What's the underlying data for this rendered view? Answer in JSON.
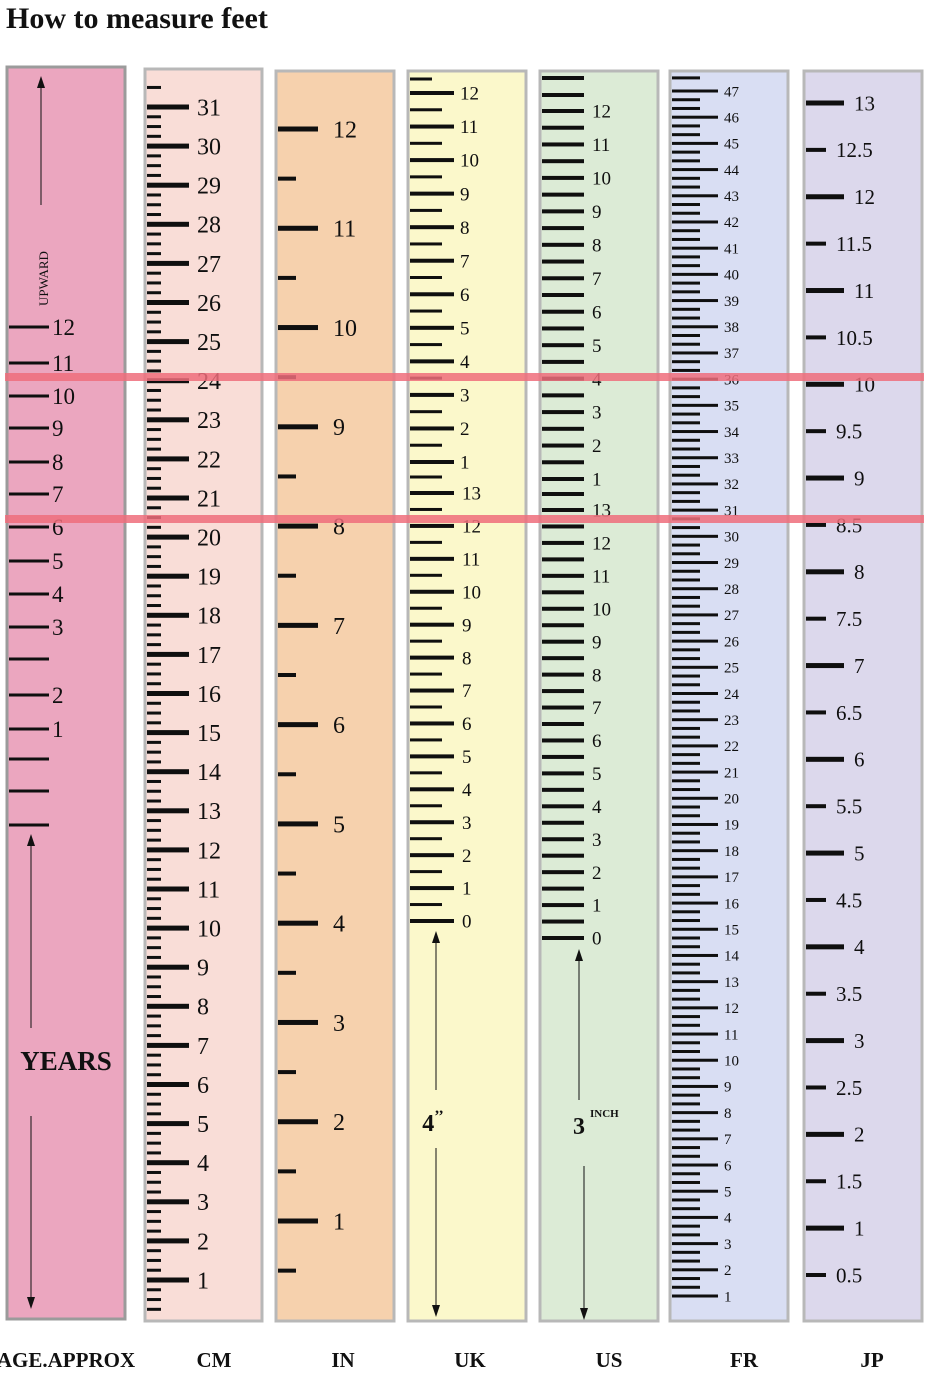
{
  "title": "How to measure feet",
  "colors": {
    "age": "#eba6bf",
    "cm": "#f9ddd7",
    "in": "#f6d1ad",
    "uk": "#fbf8cb",
    "us": "#dcebd6",
    "fr": "#d9def3",
    "jp": "#dcd8ec",
    "guide_line": "#ee6d7b",
    "tick": "#0f0f0f"
  },
  "columns": [
    {
      "key": "age",
      "footer": "AGE.APPROX"
    },
    {
      "key": "cm",
      "footer": "CM"
    },
    {
      "key": "in",
      "footer": "IN"
    },
    {
      "key": "uk",
      "footer": "UK"
    },
    {
      "key": "us",
      "footer": "US"
    },
    {
      "key": "fr",
      "footer": "FR"
    },
    {
      "key": "jp",
      "footer": "JP"
    }
  ],
  "annotations": {
    "upward": "UPWARD",
    "years": "YEARS",
    "uk_length": "4",
    "uk_length_unit": "’’",
    "us_length": "3",
    "us_length_unit": "INCH"
  },
  "chart_data": {
    "type": "table",
    "title": "How to measure feet",
    "scales": {
      "age": [
        "12",
        "11",
        "10",
        "9",
        "8",
        "7",
        "6",
        "5",
        "4",
        "3",
        "2",
        "1"
      ],
      "cm": [
        "31",
        "30",
        "29",
        "28",
        "27",
        "26",
        "25",
        "24",
        "23",
        "22",
        "21",
        "20",
        "19",
        "18",
        "17",
        "16",
        "15",
        "14",
        "13",
        "12",
        "11",
        "10",
        "9",
        "8",
        "7",
        "6",
        "5",
        "4",
        "3",
        "2",
        "1"
      ],
      "in": [
        "12",
        "11",
        "10",
        "9",
        "8",
        "7",
        "6",
        "5",
        "4",
        "3",
        "2",
        "1"
      ],
      "uk_adult": [
        "12",
        "11",
        "10",
        "9",
        "8",
        "7",
        "6",
        "5",
        "4",
        "3",
        "2",
        "1"
      ],
      "uk_child": [
        "13",
        "12",
        "11",
        "10",
        "9",
        "8",
        "7",
        "6",
        "5",
        "4",
        "3",
        "2",
        "1",
        "0"
      ],
      "us_adult": [
        "12",
        "11",
        "10",
        "9",
        "8",
        "7",
        "6",
        "5",
        "4",
        "3",
        "2",
        "1"
      ],
      "us_child": [
        "13",
        "12",
        "11",
        "10",
        "9",
        "8",
        "7",
        "6",
        "5",
        "4",
        "3",
        "2",
        "1",
        "0"
      ],
      "fr": [
        "47",
        "46",
        "45",
        "44",
        "43",
        "42",
        "41",
        "40",
        "39",
        "38",
        "37",
        "36",
        "35",
        "34",
        "33",
        "32",
        "31",
        "30",
        "29",
        "28",
        "27",
        "26",
        "25",
        "24",
        "23",
        "22",
        "21",
        "20",
        "19",
        "18",
        "17",
        "16",
        "15",
        "14",
        "13",
        "12",
        "11",
        "10",
        "9",
        "8",
        "7",
        "6",
        "5",
        "4",
        "3",
        "2",
        "1"
      ],
      "jp": [
        "13",
        "12.5",
        "12",
        "11.5",
        "11",
        "10.5",
        "10",
        "9.5",
        "9",
        "8.5",
        "8",
        "7.5",
        "7",
        "6.5",
        "6",
        "5.5",
        "5",
        "4.5",
        "4",
        "3.5",
        "3",
        "2.5",
        "2",
        "1.5",
        "1",
        "0.5"
      ]
    },
    "guide_lines": [
      {
        "age": "10",
        "cm": "24",
        "in": "",
        "uk": "4",
        "us": "4",
        "fr": "36",
        "jp": "10"
      },
      {
        "age": "6",
        "cm": "20",
        "in": "8",
        "uk": "12",
        "us": "13",
        "fr": "31",
        "jp": "8.5"
      }
    ]
  }
}
